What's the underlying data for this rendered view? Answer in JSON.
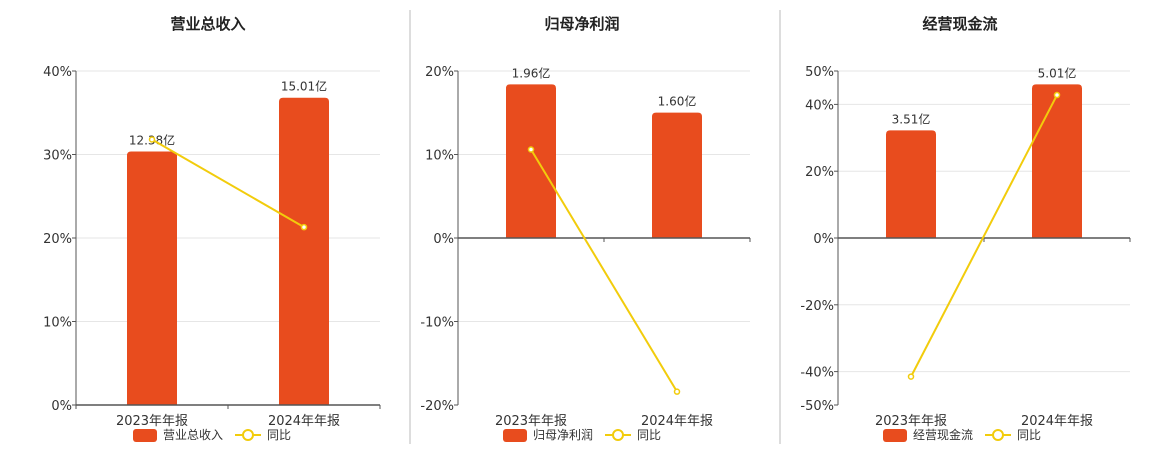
{
  "colors": {
    "bar": "#e84c1e",
    "line": "#f2cc0c",
    "grid": "#e6e6e6",
    "axis": "#555555",
    "divider": "#bbbbbb"
  },
  "chart_data": [
    {
      "type": "bar",
      "title": "营业总收入",
      "categories": [
        "2023年年报",
        "2024年年报"
      ],
      "series": [
        {
          "name": "营业总收入",
          "type": "bar",
          "values": [
            12.38,
            15.01
          ],
          "labels": [
            "12.38亿",
            "15.01亿"
          ]
        },
        {
          "name": "同比",
          "type": "line",
          "values": [
            31.8,
            21.3
          ]
        }
      ],
      "ylim": [
        0,
        40
      ],
      "yticks": [
        "0%",
        "10%",
        "20%",
        "30%",
        "40%"
      ],
      "ytick_values": [
        0,
        10,
        20,
        30,
        40
      ],
      "legend": "bottom",
      "grid": true
    },
    {
      "type": "bar",
      "title": "归母净利润",
      "categories": [
        "2023年年报",
        "2024年年报"
      ],
      "series": [
        {
          "name": "归母净利润",
          "type": "bar",
          "values": [
            1.96,
            1.6
          ],
          "labels": [
            "1.96亿",
            "1.60亿"
          ]
        },
        {
          "name": "同比",
          "type": "line",
          "values": [
            10.6,
            -18.4
          ]
        }
      ],
      "ylim": [
        -20,
        20
      ],
      "yticks": [
        "-20%",
        "-10%",
        "0%",
        "10%",
        "20%"
      ],
      "ytick_values": [
        -20,
        -10,
        0,
        10,
        20
      ],
      "legend": "bottom",
      "grid": true
    },
    {
      "type": "bar",
      "title": "经营现金流",
      "categories": [
        "2023年年报",
        "2024年年报"
      ],
      "series": [
        {
          "name": "经营现金流",
          "type": "bar",
          "values": [
            3.51,
            5.01
          ],
          "labels": [
            "3.51亿",
            "5.01亿"
          ]
        },
        {
          "name": "同比",
          "type": "line",
          "values": [
            -41.5,
            42.8
          ]
        }
      ],
      "ylim": [
        -50,
        50
      ],
      "yticks": [
        "-50%",
        "-40%",
        "-20%",
        "0%",
        "20%",
        "40%",
        "50%"
      ],
      "ytick_values": [
        -50,
        -40,
        -20,
        0,
        20,
        40,
        50
      ],
      "legend": "bottom",
      "grid": true
    }
  ]
}
